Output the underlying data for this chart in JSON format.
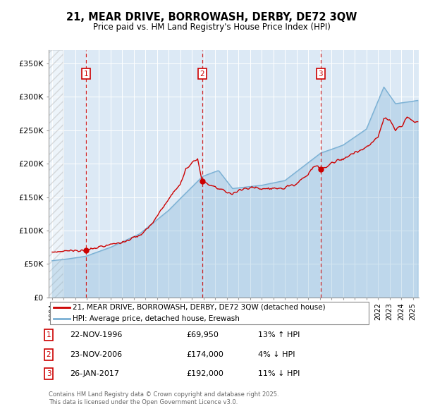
{
  "title": "21, MEAR DRIVE, BORROWASH, DERBY, DE72 3QW",
  "subtitle": "Price paid vs. HM Land Registry's House Price Index (HPI)",
  "ylim": [
    0,
    370000
  ],
  "yticks": [
    0,
    50000,
    100000,
    150000,
    200000,
    250000,
    300000,
    350000
  ],
  "ytick_labels": [
    "£0",
    "£50K",
    "£100K",
    "£150K",
    "£200K",
    "£250K",
    "£300K",
    "£350K"
  ],
  "xlim_start": 1993.7,
  "xlim_end": 2025.5,
  "sale_dates": [
    1996.896,
    2006.896,
    2017.07
  ],
  "sale_prices": [
    69950,
    174000,
    192000
  ],
  "sale_labels": [
    "1",
    "2",
    "3"
  ],
  "sale_label_dates": [
    "22-NOV-1996",
    "23-NOV-2006",
    "26-JAN-2017"
  ],
  "sale_price_labels": [
    "£69,950",
    "£174,000",
    "£192,000"
  ],
  "sale_hpi_labels": [
    "13% ↑ HPI",
    "4% ↓ HPI",
    "11% ↓ HPI"
  ],
  "legend_red_label": "21, MEAR DRIVE, BORROWASH, DERBY, DE72 3QW (detached house)",
  "legend_blue_label": "HPI: Average price, detached house, Erewash",
  "footer": "Contains HM Land Registry data © Crown copyright and database right 2025.\nThis data is licensed under the Open Government Licence v3.0.",
  "bg_color": "#dce9f5",
  "hatch_end_year": 1994.9,
  "red_color": "#cc0000",
  "blue_color": "#7ab0d4"
}
